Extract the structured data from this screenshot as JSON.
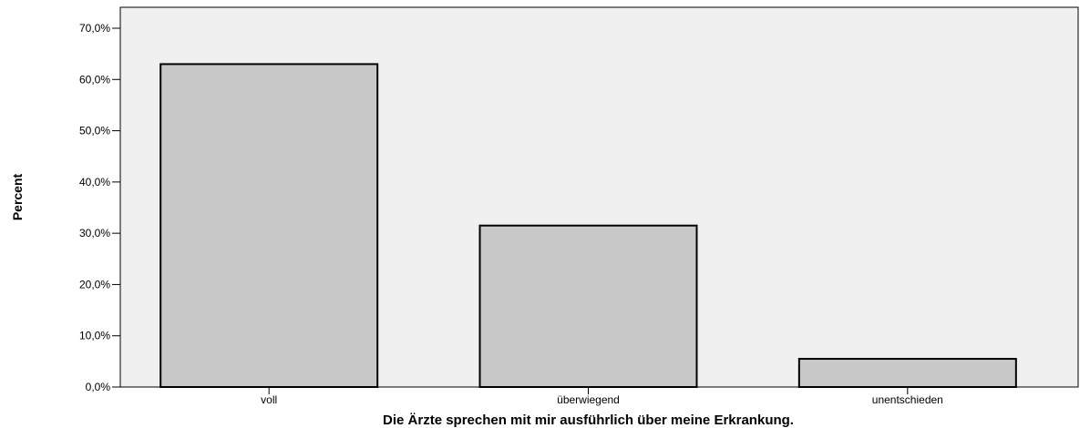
{
  "chart_data": {
    "type": "bar",
    "categories": [
      "voll",
      "überwiegend",
      "unentschieden"
    ],
    "values": [
      63.0,
      31.5,
      5.5
    ],
    "xlabel": "Die Ärzte sprechen mit mir ausführlich über meine Erkrankung.",
    "ylabel": "Percent",
    "ylim": [
      0,
      70
    ],
    "yticks": [
      0,
      10,
      20,
      30,
      40,
      50,
      60,
      70
    ],
    "ytick_labels": [
      "0,0%",
      "10,0%",
      "20,0%",
      "30,0%",
      "40,0%",
      "50,0%",
      "60,0%",
      "70,0%"
    ],
    "grid": false,
    "legend": "none",
    "colors": {
      "plot_background": "#f0f0f0",
      "bar_fill": "#c8c8c8",
      "bar_stroke": "#000000",
      "axis": "#000000"
    }
  }
}
